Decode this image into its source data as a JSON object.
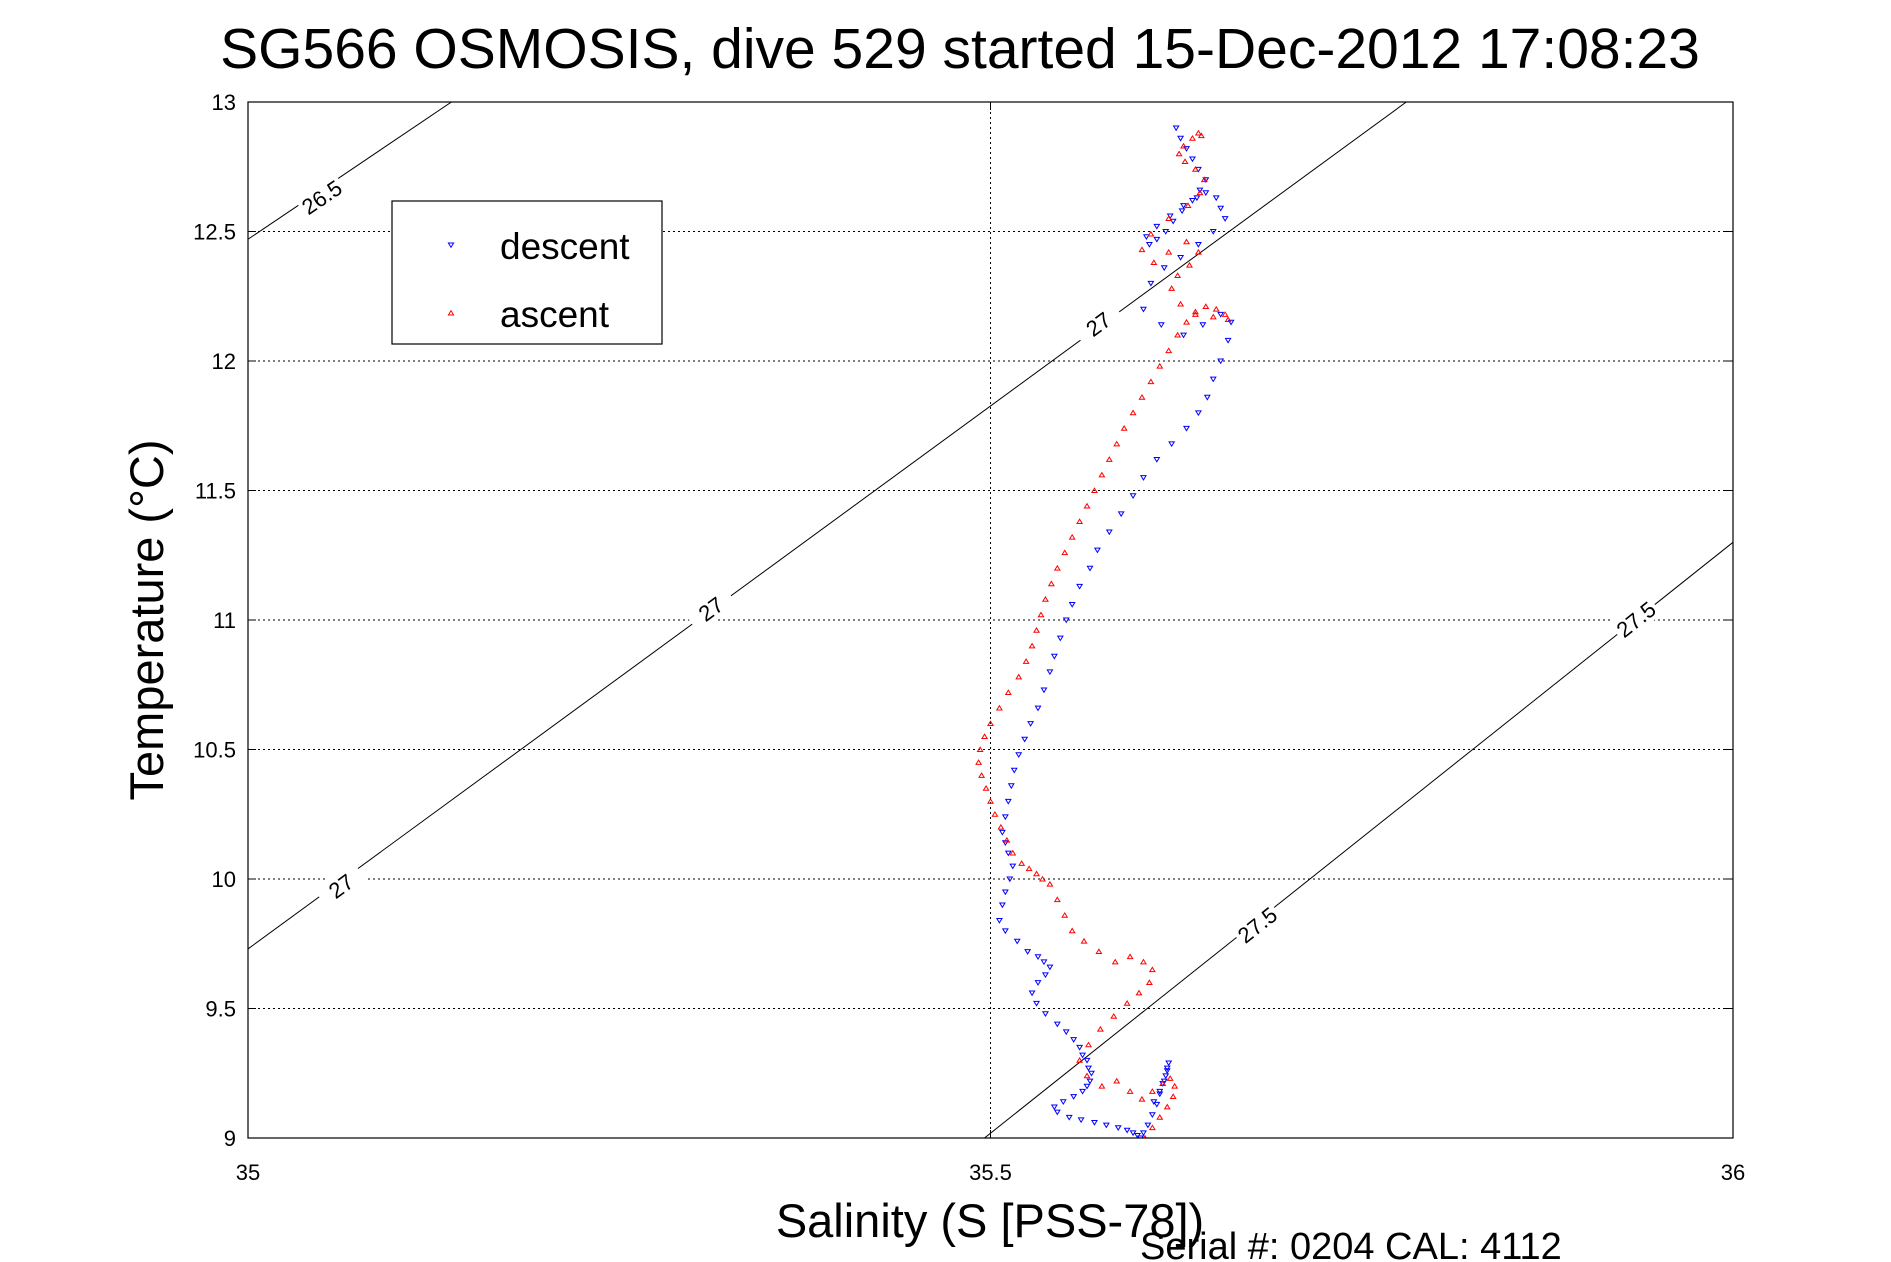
{
  "chart_data": {
    "type": "scatter",
    "title": "SG566 OSMOSIS, dive 529 started 15-Dec-2012 17:08:23",
    "xlabel": "Salinity (S [PSS-78])",
    "ylabel": "Temperature (°C)",
    "xlim": [
      35,
      36
    ],
    "ylim": [
      9,
      13
    ],
    "grid": true,
    "x_ticks": [
      35,
      35.5,
      36
    ],
    "x_tick_labels": [
      "35",
      "35.5",
      "36"
    ],
    "y_ticks": [
      9,
      9.5,
      10,
      10.5,
      11,
      11.5,
      12,
      12.5,
      13
    ],
    "y_tick_labels": [
      "9",
      "9.5",
      "10",
      "10.5",
      "11",
      "11.5",
      "12",
      "12.5",
      "13"
    ],
    "legend": {
      "placement": "top-left",
      "entries": [
        {
          "label": "descent",
          "color": "#0000ff",
          "marker": "triangle-down"
        },
        {
          "label": "ascent",
          "color": "#ff0000",
          "marker": "triangle-up"
        }
      ]
    },
    "density_contours": [
      {
        "level": "26.5",
        "points": [
          [
            35,
            12.47
          ],
          [
            35.137,
            13.0
          ]
        ],
        "labels_at": [
          [
            35.05,
            12.63
          ]
        ]
      },
      {
        "level": "27",
        "points": [
          [
            35,
            9.73
          ],
          [
            35.78,
            13.0
          ]
        ],
        "labels_at": [
          [
            35.063,
            9.97
          ],
          [
            35.312,
            11.04
          ],
          [
            35.573,
            12.14
          ]
        ]
      },
      {
        "level": "27.5",
        "points": [
          [
            35.485,
            8.95
          ],
          [
            36.0,
            11.3
          ]
        ],
        "labels_at": [
          [
            35.68,
            9.82
          ],
          [
            35.935,
            11.0
          ]
        ]
      }
    ],
    "series": [
      {
        "name": "descent",
        "color": "#0000ff",
        "marker": "triangle-down",
        "x": [
          35.625,
          35.628,
          35.632,
          35.636,
          35.64,
          35.645,
          35.641,
          35.636,
          35.629,
          35.623,
          35.618,
          35.612,
          35.607,
          35.605,
          35.612,
          35.621,
          35.63,
          35.639,
          35.645,
          35.652,
          35.655,
          35.658,
          35.65,
          35.64,
          35.628,
          35.617,
          35.608,
          35.603,
          35.615,
          35.63,
          35.643,
          35.655,
          35.662,
          35.66,
          35.655,
          35.65,
          35.646,
          35.64,
          35.632,
          35.622,
          35.612,
          35.603,
          35.596,
          35.588,
          35.58,
          35.572,
          35.567,
          35.56,
          35.555,
          35.551,
          35.547,
          35.543,
          35.54,
          35.536,
          35.532,
          35.527,
          35.523,
          35.519,
          35.516,
          35.514,
          35.512,
          35.51,
          35.508,
          35.51,
          35.512,
          35.515,
          35.513,
          35.51,
          35.508,
          35.506,
          35.51,
          35.518,
          35.525,
          35.532,
          35.536,
          35.54,
          35.537,
          35.532,
          35.528,
          35.531,
          35.537,
          35.545,
          35.551,
          35.556,
          35.56,
          35.562,
          35.565,
          35.566,
          35.568,
          35.567,
          35.565,
          35.562,
          35.556,
          35.549,
          35.543,
          35.545,
          35.553,
          35.561,
          35.57,
          35.578,
          35.586,
          35.592,
          35.596,
          35.599,
          35.601,
          35.603,
          35.606,
          35.609,
          35.612,
          35.614,
          35.616,
          35.618,
          35.619,
          35.62,
          35.619,
          35.617,
          35.614,
          35.61
        ],
        "y": [
          12.9,
          12.86,
          12.82,
          12.78,
          12.74,
          12.7,
          12.66,
          12.62,
          12.58,
          12.54,
          12.5,
          12.47,
          12.45,
          12.48,
          12.52,
          12.56,
          12.6,
          12.63,
          12.65,
          12.63,
          12.59,
          12.55,
          12.5,
          12.45,
          12.4,
          12.36,
          12.3,
          12.2,
          12.14,
          12.1,
          12.14,
          12.18,
          12.15,
          12.08,
          12.0,
          11.93,
          11.86,
          11.8,
          11.74,
          11.68,
          11.62,
          11.55,
          11.48,
          11.41,
          11.34,
          11.27,
          11.2,
          11.13,
          11.06,
          11.0,
          10.93,
          10.86,
          10.8,
          10.73,
          10.66,
          10.6,
          10.54,
          10.48,
          10.42,
          10.36,
          10.3,
          10.24,
          10.18,
          10.14,
          10.1,
          10.05,
          10.0,
          9.95,
          9.9,
          9.84,
          9.8,
          9.76,
          9.72,
          9.7,
          9.68,
          9.66,
          9.63,
          9.6,
          9.56,
          9.52,
          9.48,
          9.44,
          9.41,
          9.38,
          9.35,
          9.32,
          9.3,
          9.27,
          9.25,
          9.22,
          9.2,
          9.18,
          9.16,
          9.14,
          9.12,
          9.1,
          9.08,
          9.07,
          9.06,
          9.05,
          9.04,
          9.03,
          9.02,
          9.01,
          9.0,
          9.02,
          9.05,
          9.09,
          9.13,
          9.17,
          9.21,
          9.24,
          9.27,
          9.29,
          9.26,
          9.22,
          9.18,
          9.14
        ]
      },
      {
        "name": "ascent",
        "color": "#ff0000",
        "marker": "triangle-up",
        "x": [
          35.604,
          35.609,
          35.614,
          35.619,
          35.623,
          35.624,
          35.621,
          35.616,
          35.609,
          35.602,
          35.594,
          35.585,
          35.575,
          35.565,
          35.56,
          35.566,
          35.574,
          35.583,
          35.592,
          35.6,
          35.607,
          35.609,
          35.603,
          35.594,
          35.584,
          35.573,
          35.563,
          35.555,
          35.55,
          35.545,
          35.54,
          35.535,
          35.531,
          35.526,
          35.521,
          35.515,
          35.511,
          35.507,
          35.503,
          35.5,
          35.497,
          35.494,
          35.492,
          35.493,
          35.496,
          35.5,
          35.506,
          35.512,
          35.519,
          35.524,
          35.528,
          35.531,
          35.534,
          35.537,
          35.541,
          35.545,
          35.55,
          35.555,
          35.56,
          35.565,
          35.57,
          35.575,
          35.58,
          35.585,
          35.59,
          35.596,
          35.602,
          35.608,
          35.614,
          35.62,
          35.626,
          35.632,
          35.638,
          35.645,
          35.652,
          35.658,
          35.66,
          35.65,
          35.638,
          35.628,
          35.622,
          35.626,
          35.634,
          35.64,
          35.632,
          35.62,
          35.61,
          35.602,
          35.608,
          35.62,
          35.633,
          35.641,
          35.644,
          35.638,
          35.631,
          35.627,
          35.63,
          35.636,
          35.64,
          35.642
        ],
        "y": [
          9.0,
          9.04,
          9.08,
          9.12,
          9.16,
          9.2,
          9.23,
          9.21,
          9.18,
          9.15,
          9.18,
          9.22,
          9.2,
          9.24,
          9.3,
          9.36,
          9.42,
          9.47,
          9.52,
          9.56,
          9.6,
          9.65,
          9.68,
          9.7,
          9.68,
          9.72,
          9.76,
          9.8,
          9.86,
          9.92,
          9.98,
          10.0,
          10.02,
          10.04,
          10.06,
          10.1,
          10.15,
          10.2,
          10.25,
          10.3,
          10.35,
          10.4,
          10.45,
          10.5,
          10.55,
          10.6,
          10.66,
          10.72,
          10.78,
          10.84,
          10.9,
          10.96,
          11.02,
          11.08,
          11.14,
          11.2,
          11.26,
          11.32,
          11.38,
          11.44,
          11.5,
          11.56,
          11.62,
          11.68,
          11.74,
          11.8,
          11.86,
          11.92,
          11.98,
          12.04,
          12.1,
          12.15,
          12.19,
          12.21,
          12.2,
          12.18,
          12.16,
          12.17,
          12.18,
          12.22,
          12.28,
          12.33,
          12.37,
          12.42,
          12.46,
          12.42,
          12.38,
          12.43,
          12.49,
          12.55,
          12.6,
          12.65,
          12.7,
          12.74,
          12.77,
          12.8,
          12.83,
          12.86,
          12.88,
          12.87
        ]
      }
    ]
  },
  "footer": {
    "serial_text": "Serial #: 0204  CAL: 4112"
  }
}
